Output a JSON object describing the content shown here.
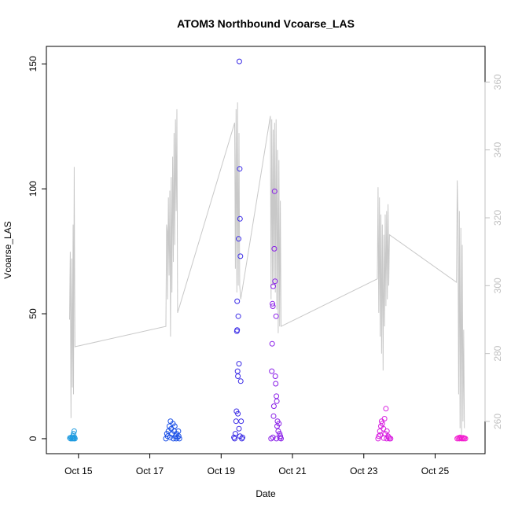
{
  "chart_data": {
    "type": "scatter",
    "title": "ATOM3 Northbound Vcoarse_LAS",
    "xlabel": "Date",
    "ylabel": "Vcoarse_LAS",
    "x_ticks": [
      "Oct 15",
      "Oct 17",
      "Oct 19",
      "Oct 21",
      "Oct 23",
      "Oct 25"
    ],
    "x_tick_days": [
      15,
      17,
      19,
      21,
      23,
      25
    ],
    "xlim_days": [
      14.1,
      26.4
    ],
    "y_ticks": [
      0,
      50,
      100,
      150
    ],
    "ylim": [
      -6,
      157
    ],
    "y2_ticks": [
      260,
      280,
      300,
      320,
      340,
      360
    ],
    "y2lim": [
      250.5,
      370.5
    ],
    "grid": false,
    "colors": {
      "secondary_line": "#c8c8c8",
      "right_axis": "#c0c0c0",
      "axis": "#000000"
    },
    "series": [
      {
        "color": "#1E9BE0",
        "points": [
          [
            14.78,
            0
          ],
          [
            14.8,
            0.5
          ],
          [
            14.82,
            0
          ],
          [
            14.84,
            1
          ],
          [
            14.85,
            0.2
          ],
          [
            14.86,
            2
          ],
          [
            14.87,
            0
          ],
          [
            14.88,
            3
          ],
          [
            14.89,
            0.5
          ],
          [
            14.9,
            0
          ],
          [
            14.76,
            0.3
          ],
          [
            14.83,
            0.1
          ]
        ]
      },
      {
        "color": "#1A4FE6",
        "points": [
          [
            17.45,
            0
          ],
          [
            17.5,
            1
          ],
          [
            17.52,
            3
          ],
          [
            17.55,
            5
          ],
          [
            17.58,
            7
          ],
          [
            17.6,
            4
          ],
          [
            17.62,
            2
          ],
          [
            17.65,
            6
          ],
          [
            17.68,
            3
          ],
          [
            17.7,
            5
          ],
          [
            17.72,
            1
          ],
          [
            17.75,
            2
          ],
          [
            17.78,
            0.5
          ],
          [
            17.8,
            3
          ],
          [
            17.83,
            0
          ],
          [
            17.48,
            2
          ],
          [
            17.57,
            0.5
          ],
          [
            17.66,
            0
          ],
          [
            17.74,
            0
          ],
          [
            17.81,
            1
          ]
        ]
      },
      {
        "color": "#3A2BE6",
        "points": [
          [
            19.38,
            0
          ],
          [
            19.4,
            2
          ],
          [
            19.42,
            7
          ],
          [
            19.43,
            11
          ],
          [
            19.44,
            43
          ],
          [
            19.45,
            55
          ],
          [
            19.46,
            27
          ],
          [
            19.47,
            25
          ],
          [
            19.48,
            49
          ],
          [
            19.49,
            80
          ],
          [
            19.5,
            30
          ],
          [
            19.51,
            151
          ],
          [
            19.52,
            108
          ],
          [
            19.53,
            88
          ],
          [
            19.54,
            73
          ],
          [
            19.55,
            23
          ],
          [
            19.56,
            7
          ],
          [
            19.45,
            43.5
          ],
          [
            19.47,
            10
          ],
          [
            19.5,
            4
          ],
          [
            19.53,
            1
          ],
          [
            19.36,
            0.5
          ],
          [
            19.58,
            0
          ],
          [
            19.6,
            0.5
          ]
        ]
      },
      {
        "color": "#8A1FE8",
        "points": [
          [
            20.4,
            0
          ],
          [
            20.42,
            27
          ],
          [
            20.43,
            38
          ],
          [
            20.44,
            54
          ],
          [
            20.45,
            53
          ],
          [
            20.46,
            61
          ],
          [
            20.47,
            9
          ],
          [
            20.48,
            13
          ],
          [
            20.49,
            76
          ],
          [
            20.5,
            99
          ],
          [
            20.51,
            63
          ],
          [
            20.52,
            25
          ],
          [
            20.53,
            22
          ],
          [
            20.54,
            49
          ],
          [
            20.55,
            17
          ],
          [
            20.56,
            15
          ],
          [
            20.57,
            5
          ],
          [
            20.58,
            7
          ],
          [
            20.6,
            3
          ],
          [
            20.62,
            6
          ],
          [
            20.64,
            2
          ],
          [
            20.66,
            1
          ],
          [
            20.68,
            0
          ],
          [
            20.45,
            0.5
          ],
          [
            20.55,
            0
          ],
          [
            20.65,
            0.3
          ]
        ]
      },
      {
        "color": "#D81FE0",
        "points": [
          [
            23.4,
            0
          ],
          [
            23.42,
            1
          ],
          [
            23.45,
            3
          ],
          [
            23.48,
            5
          ],
          [
            23.5,
            7
          ],
          [
            23.52,
            6
          ],
          [
            23.55,
            4
          ],
          [
            23.58,
            8
          ],
          [
            23.6,
            2
          ],
          [
            23.62,
            12
          ],
          [
            23.65,
            3
          ],
          [
            23.68,
            1
          ],
          [
            23.7,
            0.5
          ],
          [
            23.72,
            0
          ],
          [
            23.75,
            0
          ],
          [
            23.46,
            1.5
          ],
          [
            23.56,
            0.2
          ],
          [
            23.64,
            0
          ]
        ]
      },
      {
        "color": "#F21ECF",
        "points": [
          [
            25.62,
            0
          ],
          [
            25.65,
            0.3
          ],
          [
            25.68,
            0
          ],
          [
            25.7,
            0.5
          ],
          [
            25.72,
            0.2
          ],
          [
            25.75,
            0
          ],
          [
            25.78,
            0.4
          ],
          [
            25.8,
            0
          ],
          [
            25.82,
            0.2
          ],
          [
            25.85,
            0
          ]
        ]
      }
    ],
    "secondary_line": {
      "axis": "right",
      "points": [
        [
          14.75,
          290
        ],
        [
          14.77,
          310
        ],
        [
          14.79,
          261
        ],
        [
          14.81,
          308
        ],
        [
          14.83,
          270
        ],
        [
          14.85,
          318
        ],
        [
          14.86,
          268
        ],
        [
          14.88,
          335
        ],
        [
          14.9,
          282
        ],
        [
          17.45,
          288
        ],
        [
          17.47,
          318
        ],
        [
          17.49,
          316
        ],
        [
          17.5,
          296
        ],
        [
          17.52,
          326
        ],
        [
          17.54,
          303
        ],
        [
          17.56,
          328
        ],
        [
          17.58,
          285
        ],
        [
          17.6,
          332
        ],
        [
          17.62,
          298
        ],
        [
          17.64,
          338
        ],
        [
          17.66,
          307
        ],
        [
          17.68,
          345
        ],
        [
          17.7,
          312
        ],
        [
          17.72,
          349
        ],
        [
          17.74,
          322
        ],
        [
          17.76,
          352
        ],
        [
          17.78,
          292
        ],
        [
          19.38,
          348
        ],
        [
          19.4,
          305
        ],
        [
          19.42,
          352
        ],
        [
          19.44,
          298
        ],
        [
          19.46,
          354
        ],
        [
          19.48,
          300
        ],
        [
          19.5,
          345
        ],
        [
          19.52,
          300
        ],
        [
          19.55,
          296
        ],
        [
          20.38,
          350
        ],
        [
          20.4,
          296
        ],
        [
          20.42,
          349
        ],
        [
          20.44,
          300
        ],
        [
          20.46,
          346
        ],
        [
          20.48,
          300
        ],
        [
          20.5,
          348
        ],
        [
          20.52,
          298
        ],
        [
          20.54,
          349
        ],
        [
          20.56,
          293
        ],
        [
          20.58,
          340
        ],
        [
          20.6,
          286
        ],
        [
          20.62,
          337
        ],
        [
          20.64,
          288
        ],
        [
          20.66,
          325
        ],
        [
          20.68,
          288
        ],
        [
          23.38,
          302
        ],
        [
          23.4,
          329
        ],
        [
          23.42,
          292
        ],
        [
          23.44,
          326
        ],
        [
          23.46,
          285
        ],
        [
          23.48,
          321
        ],
        [
          23.5,
          280
        ],
        [
          23.52,
          318
        ],
        [
          23.54,
          275
        ],
        [
          23.56,
          315
        ],
        [
          23.58,
          288
        ],
        [
          23.6,
          321
        ],
        [
          23.62,
          294
        ],
        [
          23.64,
          322
        ],
        [
          23.66,
          296
        ],
        [
          23.68,
          324
        ],
        [
          23.7,
          300
        ],
        [
          23.72,
          315
        ],
        [
          25.6,
          301
        ],
        [
          25.62,
          331
        ],
        [
          25.64,
          320
        ],
        [
          25.66,
          268
        ],
        [
          25.68,
          322
        ],
        [
          25.7,
          258
        ],
        [
          25.72,
          317
        ],
        [
          25.74,
          256
        ],
        [
          25.76,
          312
        ],
        [
          25.78,
          260
        ],
        [
          25.8,
          287
        ],
        [
          25.82,
          258
        ]
      ]
    }
  }
}
